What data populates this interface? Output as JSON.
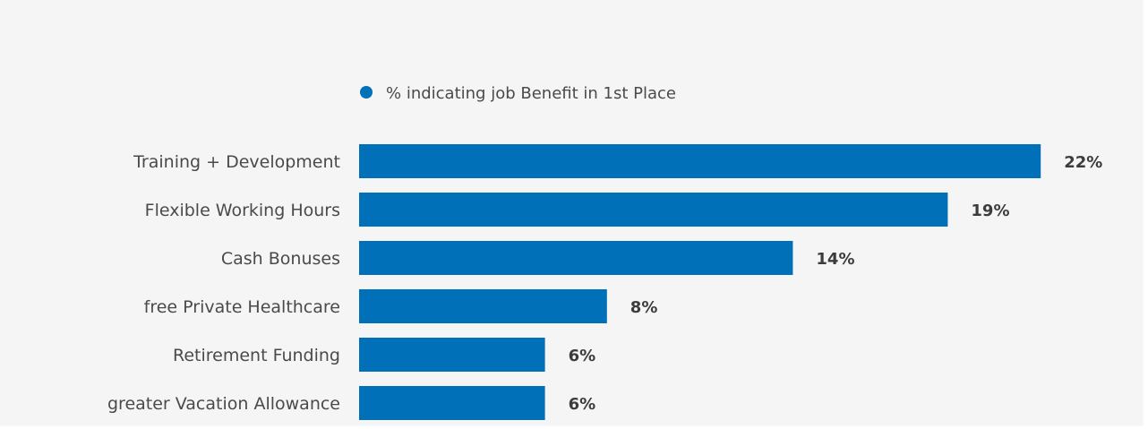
{
  "chart_data": {
    "type": "bar",
    "orientation": "horizontal",
    "categories": [
      "Training + Development",
      "Flexible Working Hours",
      "Cash Bonuses",
      "free Private Healthcare",
      "Retirement Funding",
      "greater Vacation Allowance"
    ],
    "series": [
      {
        "name": "% indicating job Benefit in 1st Place",
        "values": [
          22,
          19,
          14,
          8,
          6,
          6
        ],
        "value_labels": [
          "22%",
          "19%",
          "14%",
          "8%",
          "6%",
          "6%"
        ],
        "color": "#0070b8"
      }
    ],
    "grid": false,
    "legend_position": "top"
  }
}
